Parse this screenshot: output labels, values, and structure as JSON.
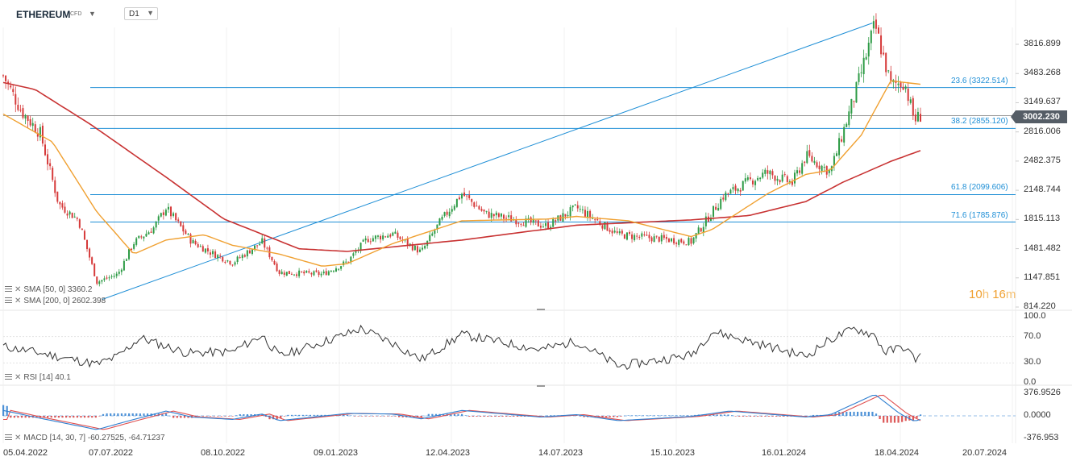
{
  "header": {
    "symbol": "ETHEREUM",
    "symbol_type": "CFD",
    "timeframe": "D1"
  },
  "price_axis": {
    "ticks": [
      "3816.899",
      "3483.268",
      "3149.637",
      "2816.006",
      "2482.375",
      "2148.744",
      "1815.113",
      "1481.482",
      "1147.851",
      "814.220"
    ],
    "current_price": "3002.230"
  },
  "fib_levels": [
    {
      "label": "23.6 (3322.514)",
      "value": 3322.514
    },
    {
      "label": "38.2 (2855.120)",
      "value": 2855.12
    },
    {
      "label": "61.8 (2099.606)",
      "value": 2099.606
    },
    {
      "label": "71.6 (1785.876)",
      "value": 1785.876
    }
  ],
  "overlay_legend": {
    "sma50": "SMA [50, 0] 3360.2",
    "sma200": "SMA [200, 0] 2602.398"
  },
  "countdown": {
    "hours": "10",
    "h_unit": "h",
    "minutes": "16",
    "m_unit": "m"
  },
  "rsi_panel": {
    "legend": "RSI [14] 40.1",
    "ticks": [
      "100.0",
      "70.0",
      "30.0",
      "0.0"
    ]
  },
  "macd_panel": {
    "legend": "MACD [14, 30, 7] -60.27525, -64.71237",
    "ticks": [
      "376.9526",
      "0.0000",
      "-376.953"
    ]
  },
  "x_axis": {
    "ticks": [
      "05.04.2022",
      "07.07.2022",
      "08.10.2022",
      "09.01.2023",
      "12.04.2023",
      "14.07.2023",
      "15.10.2023",
      "16.01.2024",
      "18.04.2024",
      "20.07.2024"
    ]
  },
  "colors": {
    "bull": "#2e9b46",
    "bear": "#d63a3a",
    "sma50": "#f0a030",
    "sma200": "#c83232",
    "fib": "#1f8fd6",
    "rsi": "#333333",
    "macd": "#2f7fd0",
    "signal": "#e05050"
  },
  "chart_data": [
    {
      "type": "candlestick",
      "title": "ETHEREUM D1",
      "x": [
        "05.04.2022",
        "07.07.2022",
        "08.10.2022",
        "09.01.2023",
        "12.04.2023",
        "14.07.2023",
        "15.10.2023",
        "16.01.2024",
        "18.04.2024"
      ],
      "close_path": [
        [
          "05.04.2022",
          3460
        ],
        [
          "20.04.2022",
          3050
        ],
        [
          "05.05.2022",
          2800
        ],
        [
          "20.05.2022",
          1990
        ],
        [
          "05.06.2022",
          1810
        ],
        [
          "20.06.2022",
          1100
        ],
        [
          "07.07.2022",
          1190
        ],
        [
          "20.07.2022",
          1550
        ],
        [
          "05.08.2022",
          1720
        ],
        [
          "15.08.2022",
          1950
        ],
        [
          "05.09.2022",
          1560
        ],
        [
          "20.09.2022",
          1440
        ],
        [
          "08.10.2022",
          1320
        ],
        [
          "01.11.2022",
          1560
        ],
        [
          "15.11.2022",
          1210
        ],
        [
          "20.12.2022",
          1190
        ],
        [
          "09.01.2023",
          1330
        ],
        [
          "25.01.2023",
          1590
        ],
        [
          "15.02.2023",
          1650
        ],
        [
          "10.03.2023",
          1440
        ],
        [
          "25.03.2023",
          1780
        ],
        [
          "12.04.2023",
          2110
        ],
        [
          "01.05.2023",
          1880
        ],
        [
          "20.06.2023",
          1740
        ],
        [
          "14.07.2023",
          1950
        ],
        [
          "17.08.2023",
          1640
        ],
        [
          "15.10.2023",
          1560
        ],
        [
          "10.11.2023",
          2080
        ],
        [
          "01.12.2023",
          2250
        ],
        [
          "15.12.2023",
          2350
        ],
        [
          "05.01.2024",
          2230
        ],
        [
          "16.01.2024",
          2540
        ],
        [
          "05.02.2024",
          2360
        ],
        [
          "25.02.2024",
          3250
        ],
        [
          "12.03.2024",
          4040
        ],
        [
          "25.03.2024",
          3350
        ],
        [
          "05.04.2024",
          3390
        ],
        [
          "13.04.2024",
          2950
        ],
        [
          "18.04.2024",
          3002.23
        ]
      ],
      "sma50": [
        [
          "05.04.2022",
          3020
        ],
        [
          "15.05.2022",
          2700
        ],
        [
          "20.06.2022",
          1900
        ],
        [
          "20.07.2022",
          1420
        ],
        [
          "15.08.2022",
          1580
        ],
        [
          "15.09.2022",
          1640
        ],
        [
          "08.10.2022",
          1520
        ],
        [
          "15.11.2022",
          1420
        ],
        [
          "20.12.2022",
          1280
        ],
        [
          "09.01.2023",
          1310
        ],
        [
          "15.02.2023",
          1540
        ],
        [
          "12.04.2023",
          1800
        ],
        [
          "20.06.2023",
          1820
        ],
        [
          "14.07.2023",
          1850
        ],
        [
          "25.08.2023",
          1800
        ],
        [
          "15.10.2023",
          1620
        ],
        [
          "01.11.2023",
          1700
        ],
        [
          "16.12.2023",
          2110
        ],
        [
          "16.01.2024",
          2330
        ],
        [
          "05.02.2024",
          2380
        ],
        [
          "01.03.2024",
          2780
        ],
        [
          "25.03.2024",
          3400
        ],
        [
          "18.04.2024",
          3360.2
        ]
      ],
      "sma200": [
        [
          "05.04.2022",
          3380
        ],
        [
          "01.05.2022",
          3300
        ],
        [
          "15.06.2022",
          2900
        ],
        [
          "15.08.2022",
          2300
        ],
        [
          "01.10.2022",
          1820
        ],
        [
          "01.12.2022",
          1480
        ],
        [
          "09.01.2023",
          1450
        ],
        [
          "12.04.2023",
          1580
        ],
        [
          "14.07.2023",
          1750
        ],
        [
          "15.10.2023",
          1810
        ],
        [
          "01.12.2023",
          1860
        ],
        [
          "16.01.2024",
          2020
        ],
        [
          "15.02.2024",
          2240
        ],
        [
          "25.03.2024",
          2480
        ],
        [
          "18.04.2024",
          2602.398
        ]
      ],
      "trendline": [
        [
          "24.06.2022",
          900
        ],
        [
          "10.03.2024",
          4060
        ]
      ],
      "ylim": [
        814.22,
        4150
      ]
    },
    {
      "type": "line",
      "title": "RSI [14]",
      "last": 40.1,
      "ylim": [
        0,
        100
      ],
      "path": [
        [
          "05.04.2022",
          55
        ],
        [
          "05.05.2022",
          45
        ],
        [
          "20.06.2022",
          28
        ],
        [
          "07.07.2022",
          40
        ],
        [
          "25.07.2022",
          68
        ],
        [
          "01.09.2022",
          45
        ],
        [
          "08.10.2022",
          47
        ],
        [
          "01.11.2022",
          72
        ],
        [
          "15.11.2022",
          40
        ],
        [
          "09.01.2023",
          74
        ],
        [
          "20.01.2023",
          82
        ],
        [
          "15.02.2023",
          60
        ],
        [
          "10.03.2023",
          35
        ],
        [
          "12.04.2023",
          73
        ],
        [
          "15.06.2023",
          50
        ],
        [
          "14.07.2023",
          63
        ],
        [
          "17.08.2023",
          25
        ],
        [
          "15.10.2023",
          42
        ],
        [
          "01.11.2023",
          78
        ],
        [
          "16.01.2024",
          40
        ],
        [
          "05.02.2024",
          66
        ],
        [
          "25.02.2024",
          82
        ],
        [
          "12.03.2024",
          72
        ],
        [
          "20.03.2024",
          46
        ],
        [
          "05.04.2024",
          55
        ],
        [
          "13.04.2024",
          36
        ],
        [
          "18.04.2024",
          40.1
        ]
      ]
    },
    {
      "type": "line",
      "title": "MACD [14, 30, 7]",
      "macd": -60.27525,
      "signal": -64.71237,
      "ylim": [
        -376.953,
        376.9526
      ],
      "path": [
        [
          "05.04.2022",
          90
        ],
        [
          "05.05.2022",
          -40
        ],
        [
          "20.06.2022",
          -230
        ],
        [
          "20.07.2022",
          -60
        ],
        [
          "15.08.2022",
          80
        ],
        [
          "05.09.2022",
          -20
        ],
        [
          "08.10.2022",
          -60
        ],
        [
          "01.11.2022",
          30
        ],
        [
          "15.11.2022",
          -80
        ],
        [
          "09.01.2023",
          40
        ],
        [
          "15.02.2023",
          30
        ],
        [
          "10.03.2023",
          -50
        ],
        [
          "12.04.2023",
          90
        ],
        [
          "15.06.2023",
          -20
        ],
        [
          "14.07.2023",
          20
        ],
        [
          "17.08.2023",
          -80
        ],
        [
          "15.10.2023",
          -10
        ],
        [
          "15.11.2023",
          80
        ],
        [
          "16.01.2024",
          -20
        ],
        [
          "05.02.2024",
          20
        ],
        [
          "12.03.2024",
          360
        ],
        [
          "01.04.2024",
          40
        ],
        [
          "13.04.2024",
          -90
        ],
        [
          "18.04.2024",
          -60.27525
        ]
      ]
    }
  ]
}
